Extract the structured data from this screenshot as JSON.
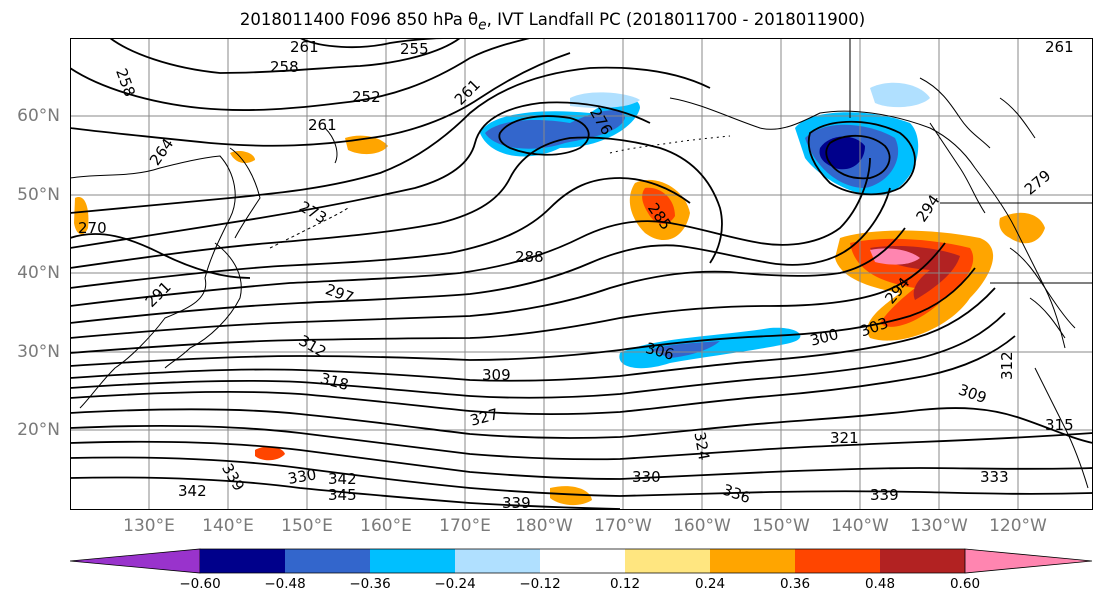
{
  "title": "2018011400 F096 850 hPa θ",
  "title_sub": "e",
  "title_rest": ", IVT Landfall PC (2018011700 - 2018011900)",
  "lat_labels": [
    "60°N",
    "50°N",
    "40°N",
    "30°N",
    "20°N"
  ],
  "lon_labels": [
    "130°E",
    "140°E",
    "150°E",
    "160°E",
    "170°E",
    "180°W",
    "170°W",
    "160°W",
    "150°W",
    "140°W",
    "130°W",
    "120°W"
  ],
  "colorbar": {
    "colors": [
      "#9933cc",
      "#00008b",
      "#3366cc",
      "#00bfff",
      "#b0e0ff",
      "#ffffff",
      "#ffe680",
      "#ffa500",
      "#ff4500",
      "#b22222",
      "#ff85b0"
    ],
    "tick_labels": [
      "−0.60",
      "−0.48",
      "−0.36",
      "−0.24",
      "−0.12",
      "0.12",
      "0.24",
      "0.36",
      "0.48",
      "0.60"
    ]
  },
  "contour_labels": [
    "261",
    "255",
    "258",
    "252",
    "261",
    "258",
    "264",
    "276",
    "270",
    "273",
    "285",
    "288",
    "291",
    "297",
    "294",
    "294",
    "303",
    "300",
    "306",
    "312",
    "318",
    "309",
    "327",
    "312",
    "309",
    "321",
    "324",
    "315",
    "330",
    "342",
    "339",
    "345",
    "336",
    "330",
    "339",
    "333",
    "339",
    "342",
    "261",
    "261",
    "279"
  ]
}
